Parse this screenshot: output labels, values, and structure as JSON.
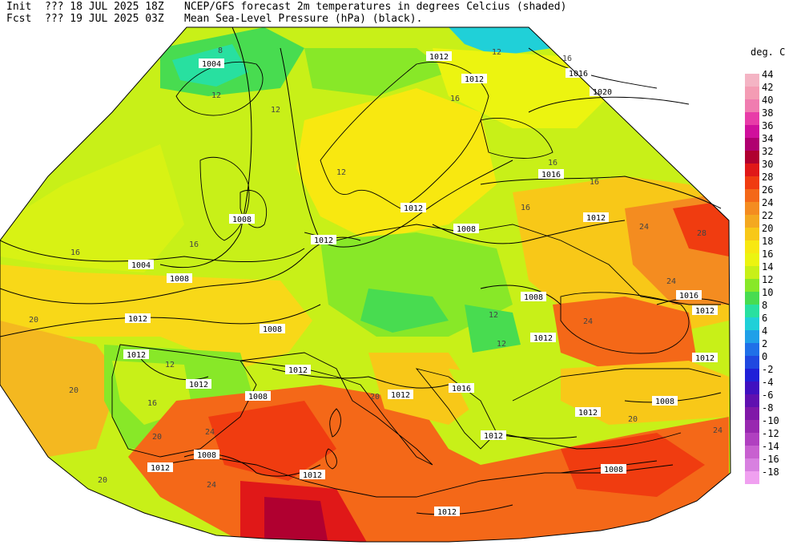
{
  "header": {
    "init_label": "Init",
    "init_value": "??? 18 JUL 2025 18Z",
    "fcst_label": "Fcst",
    "fcst_value": "??? 19 JUL 2025 03Z",
    "title_line1": "NCEP/GFS forecast 2m temperatures in degrees Celcius (shaded)",
    "title_line2": "Mean Sea-Level Pressure (hPa) (black)."
  },
  "legend": {
    "unit": "deg. C",
    "levels": [
      {
        "label": "44",
        "color": "#f4b4c4"
      },
      {
        "label": "42",
        "color": "#f49cb4"
      },
      {
        "label": "40",
        "color": "#f07cb0"
      },
      {
        "label": "38",
        "color": "#e83ca8"
      },
      {
        "label": "36",
        "color": "#d0109c"
      },
      {
        "label": "34",
        "color": "#b00070"
      },
      {
        "label": "32",
        "color": "#b00030"
      },
      {
        "label": "30",
        "color": "#e01818"
      },
      {
        "label": "28",
        "color": "#f03c10"
      },
      {
        "label": "26",
        "color": "#f46818"
      },
      {
        "label": "24",
        "color": "#f48c20"
      },
      {
        "label": "22",
        "color": "#f4a820"
      },
      {
        "label": "20",
        "color": "#f8c818"
      },
      {
        "label": "18",
        "color": "#f8e810"
      },
      {
        "label": "16",
        "color": "#ecf410"
      },
      {
        "label": "14",
        "color": "#c8f018"
      },
      {
        "label": "12",
        "color": "#88e828"
      },
      {
        "label": "10",
        "color": "#48dc50"
      },
      {
        "label": "8",
        "color": "#28e0a0"
      },
      {
        "label": "6",
        "color": "#20d0d8"
      },
      {
        "label": "4",
        "color": "#20a0e8"
      },
      {
        "label": "2",
        "color": "#2070e8"
      },
      {
        "label": "0",
        "color": "#2048e0"
      },
      {
        "label": "-2",
        "color": "#2020d8"
      },
      {
        "label": "-4",
        "color": "#4010c0"
      },
      {
        "label": "-6",
        "color": "#6010b0"
      },
      {
        "label": "-8",
        "color": "#8018a8"
      },
      {
        "label": "-10",
        "color": "#9828b0"
      },
      {
        "label": "-12",
        "color": "#b040c0"
      },
      {
        "label": "-14",
        "color": "#c860d0"
      },
      {
        "label": "-16",
        "color": "#d880e0"
      },
      {
        "label": "-18",
        "color": "#f0a0f0"
      }
    ]
  },
  "map": {
    "isobar_labels": [
      "1004",
      "1008",
      "1012",
      "1016",
      "1020"
    ],
    "temp_labels": [
      "8",
      "12",
      "16",
      "20",
      "24",
      "28"
    ]
  }
}
